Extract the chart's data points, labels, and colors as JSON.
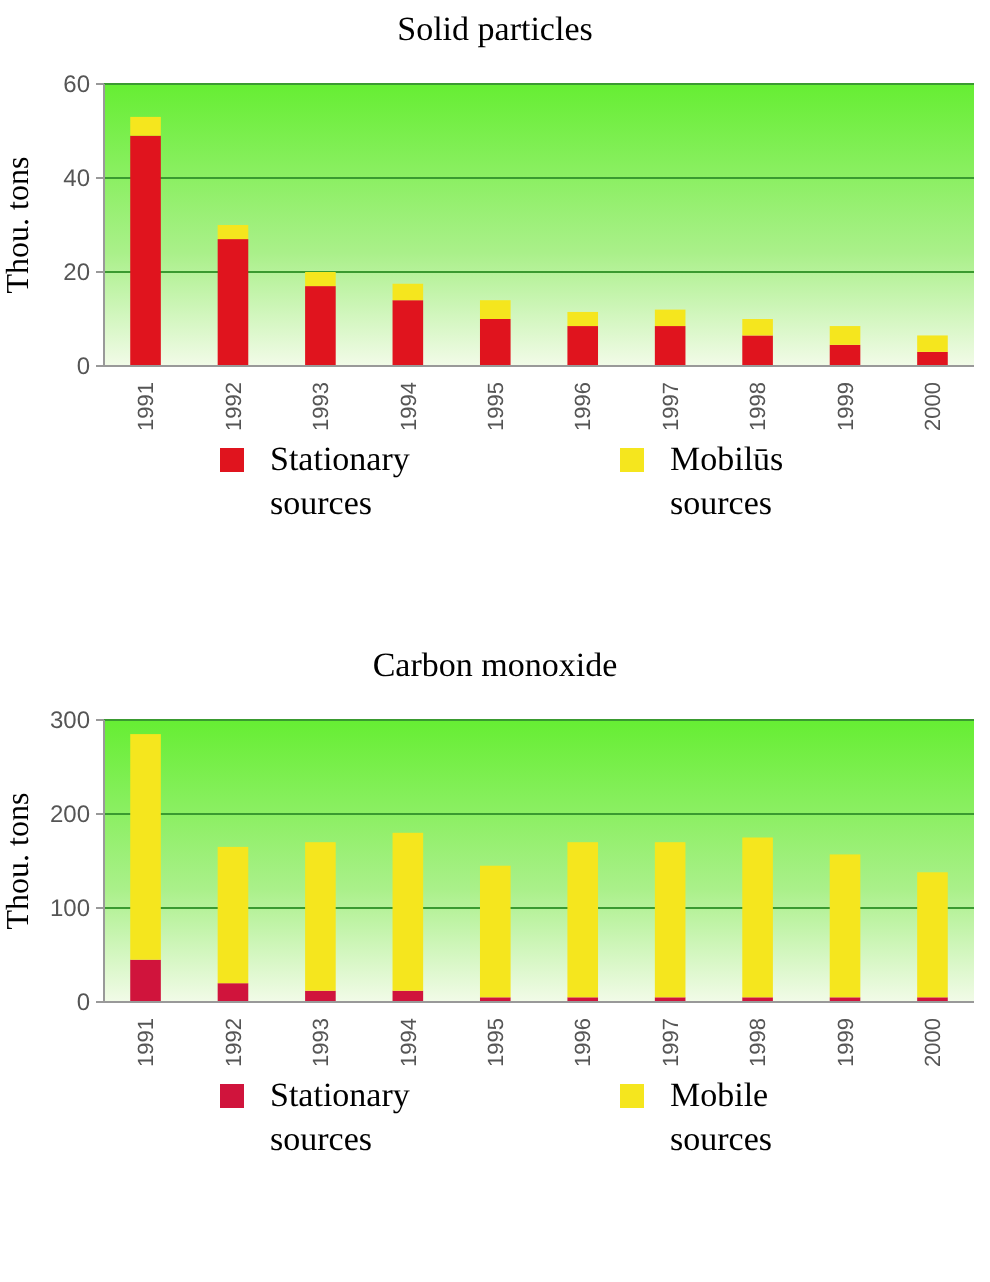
{
  "chart_data": [
    {
      "type": "bar",
      "title": "Solid particles",
      "ylabel": "Thou. tons",
      "categories": [
        "1991",
        "1992",
        "1993",
        "1994",
        "1995",
        "1996",
        "1997",
        "1998",
        "1999",
        "2000"
      ],
      "stacked": true,
      "series": [
        {
          "name": "Stationary sources",
          "color": "#e0141e",
          "values": [
            49,
            27,
            17,
            14,
            10,
            8.5,
            8.5,
            6.5,
            4.5,
            3
          ]
        },
        {
          "name": "Mobilūs sources",
          "color": "#f5e61e",
          "values": [
            4,
            3,
            3,
            3.5,
            4,
            3,
            3.5,
            3.5,
            4,
            3.5
          ]
        }
      ],
      "ylim": [
        0,
        60
      ],
      "yticks": [
        0,
        20,
        40,
        60
      ],
      "grid": "y",
      "legend": "bottom"
    },
    {
      "type": "bar",
      "title": "Carbon monoxide",
      "ylabel": "Thou. tons",
      "categories": [
        "1991",
        "1992",
        "1993",
        "1994",
        "1995",
        "1996",
        "1997",
        "1998",
        "1999",
        "2000"
      ],
      "stacked": true,
      "series": [
        {
          "name": "Stationary sources",
          "color": "#d0143c",
          "values": [
            45,
            20,
            12,
            12,
            5,
            5,
            5,
            5,
            5,
            5
          ]
        },
        {
          "name": "Mobile sources",
          "color": "#f5e61e",
          "values": [
            240,
            145,
            158,
            168,
            140,
            165,
            165,
            170,
            152,
            133
          ]
        }
      ],
      "ylim": [
        0,
        300
      ],
      "yticks": [
        0,
        100,
        200,
        300
      ],
      "grid": "y",
      "legend": "bottom"
    }
  ]
}
